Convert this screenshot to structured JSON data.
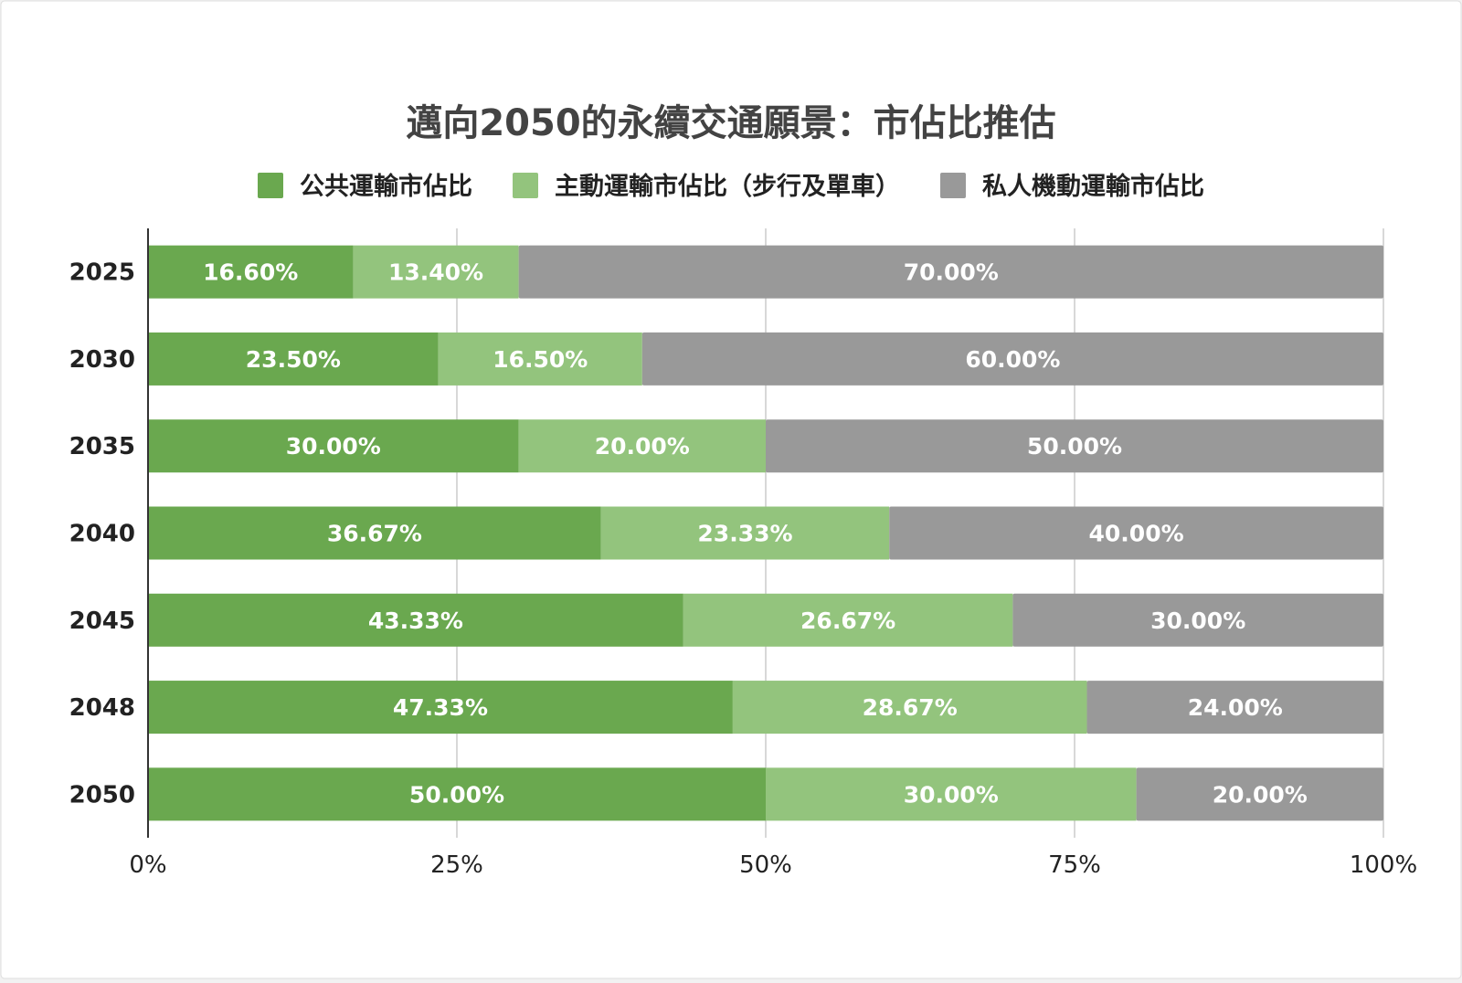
{
  "chart_data": {
    "type": "bar",
    "orientation": "horizontal",
    "stacked": true,
    "percent_stacked": true,
    "title": "邁向2050的永續交通願景：市佔比推估",
    "legend_position": "top",
    "categories": [
      "2025",
      "2030",
      "2035",
      "2040",
      "2045",
      "2048",
      "2050"
    ],
    "series": [
      {
        "name": "公共運輸市佔比",
        "color": "#6aa84f",
        "values": [
          16.6,
          23.5,
          30.0,
          36.67,
          43.33,
          47.33,
          50.0
        ],
        "labels": [
          "16.60%",
          "23.50%",
          "30.00%",
          "36.67%",
          "43.33%",
          "47.33%",
          "50.00%"
        ]
      },
      {
        "name": "主動運輸市佔比（步行及單車）",
        "color": "#93c47d",
        "values": [
          13.4,
          16.5,
          20.0,
          23.33,
          26.67,
          28.67,
          30.0
        ],
        "labels": [
          "13.40%",
          "16.50%",
          "20.00%",
          "23.33%",
          "26.67%",
          "28.67%",
          "30.00%"
        ]
      },
      {
        "name": "私人機動運輸市佔比",
        "color": "#999999",
        "values": [
          70.0,
          60.0,
          50.0,
          40.0,
          30.0,
          24.0,
          20.0
        ],
        "labels": [
          "70.00%",
          "60.00%",
          "50.00%",
          "40.00%",
          "30.00%",
          "24.00%",
          "20.00%"
        ]
      }
    ],
    "xlim": [
      0,
      100
    ],
    "xticks": [
      0,
      25,
      50,
      75,
      100
    ],
    "xtick_labels": [
      "0%",
      "25%",
      "50%",
      "75%",
      "100%"
    ],
    "grid": true,
    "xlabel": "",
    "ylabel": ""
  },
  "colors": {
    "background": "#ffffff",
    "title": "#434343",
    "axis": "#333333",
    "gridline": "#cccccc",
    "data_label": "#ffffff"
  }
}
